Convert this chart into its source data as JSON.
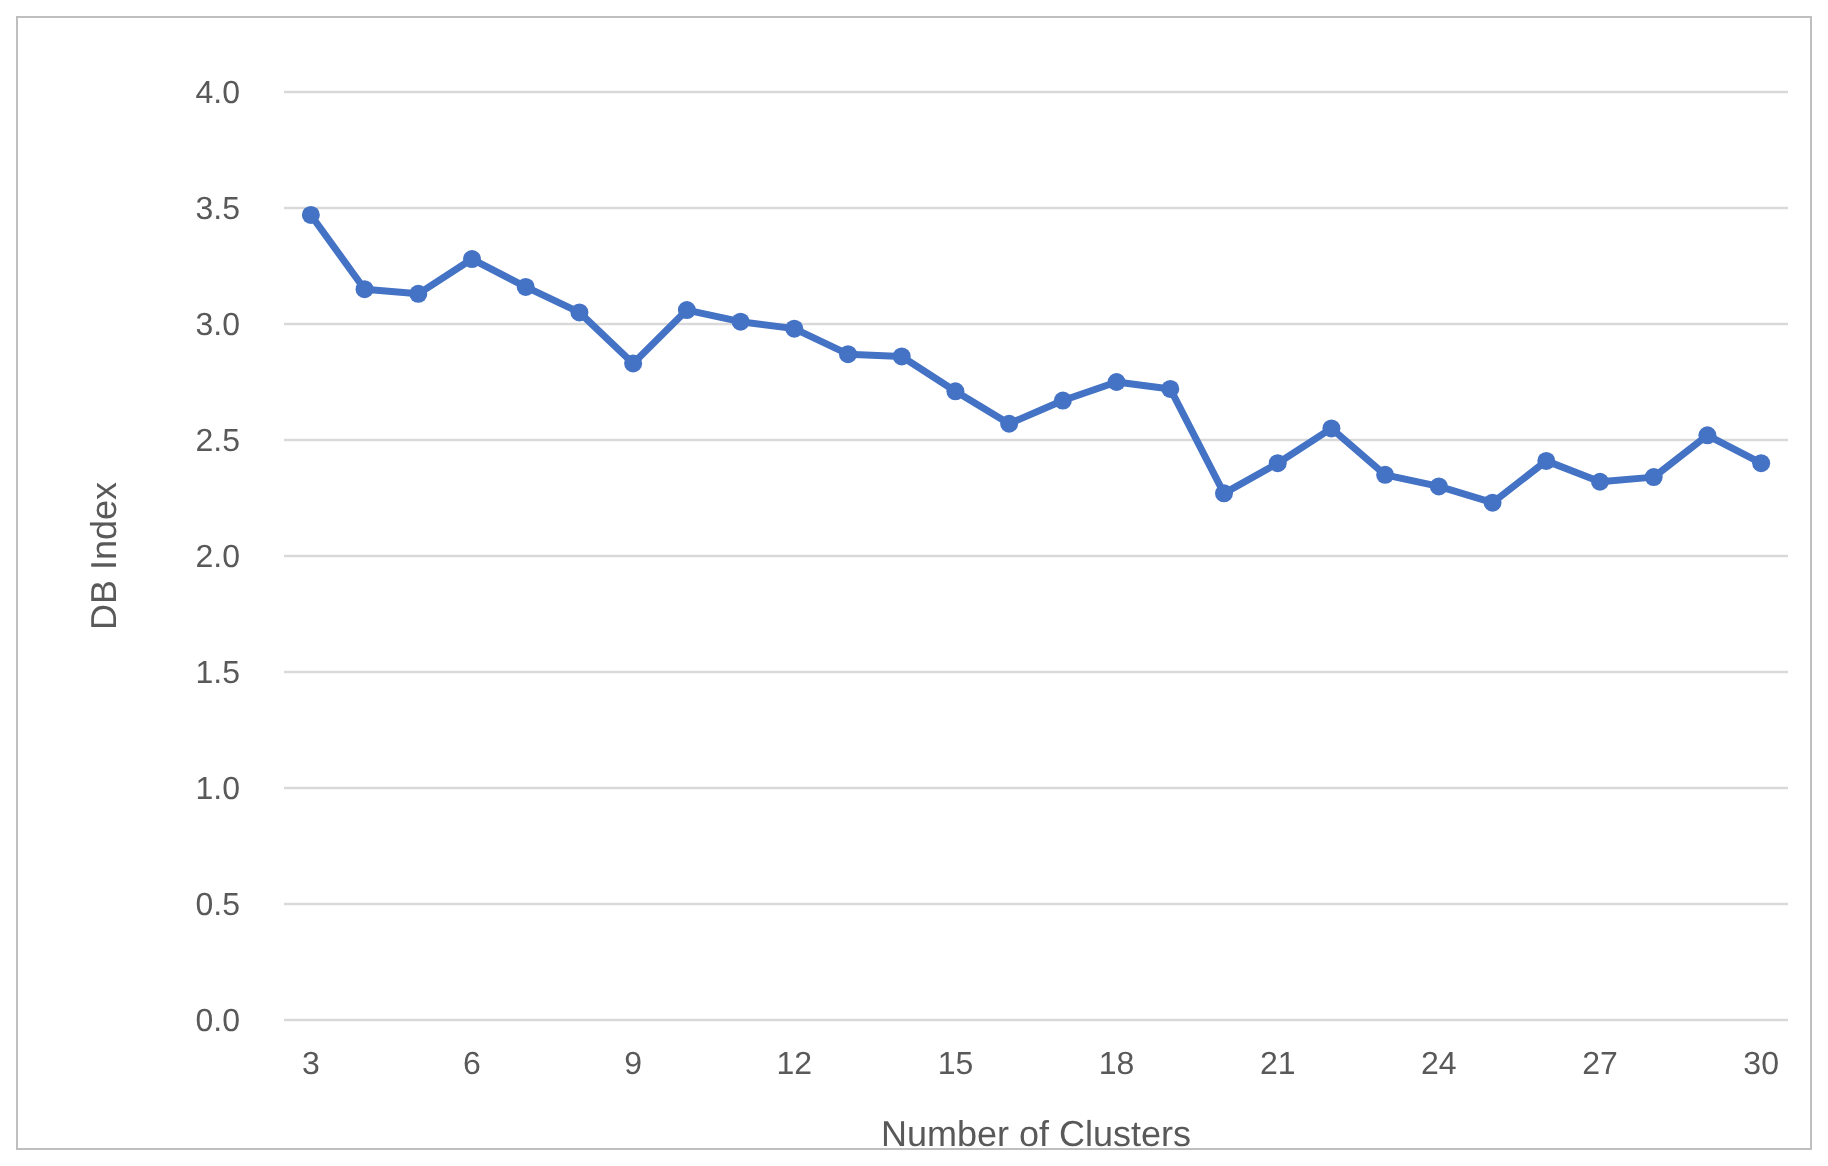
{
  "chart_data": {
    "type": "line",
    "xlabel": "Number of Clusters",
    "ylabel": "DB Index",
    "x": [
      3,
      4,
      5,
      6,
      7,
      8,
      9,
      10,
      11,
      12,
      13,
      14,
      15,
      16,
      17,
      18,
      19,
      20,
      21,
      22,
      23,
      24,
      25,
      26,
      27,
      28,
      29,
      30
    ],
    "series": [
      {
        "color": "#4472c4",
        "values": [
          3.47,
          3.15,
          3.13,
          3.28,
          3.16,
          3.05,
          2.83,
          3.06,
          3.01,
          2.98,
          2.87,
          2.86,
          2.71,
          2.57,
          2.67,
          2.75,
          2.72,
          2.27,
          2.4,
          2.55,
          2.35,
          2.3,
          2.23,
          2.41,
          2.32,
          2.34,
          2.52,
          2.4
        ]
      }
    ],
    "xlim": [
      2.5,
      30.5
    ],
    "xticks": [
      3,
      6,
      9,
      12,
      15,
      18,
      21,
      24,
      27,
      30
    ],
    "ylim": [
      0,
      4
    ],
    "yticks": [
      {
        "value": 0,
        "label": "0.0"
      },
      {
        "value": 0.5,
        "label": "0.5"
      },
      {
        "value": 1,
        "label": "1.0"
      },
      {
        "value": 1.5,
        "label": "1.5"
      },
      {
        "value": 2,
        "label": "2.0"
      },
      {
        "value": 2.5,
        "label": "2.5"
      },
      {
        "value": 3,
        "label": "3.0"
      },
      {
        "value": 3.5,
        "label": "3.5"
      },
      {
        "value": 4,
        "label": "4.0"
      }
    ],
    "grid": "y",
    "marker": "circle",
    "line_style": "solid"
  }
}
